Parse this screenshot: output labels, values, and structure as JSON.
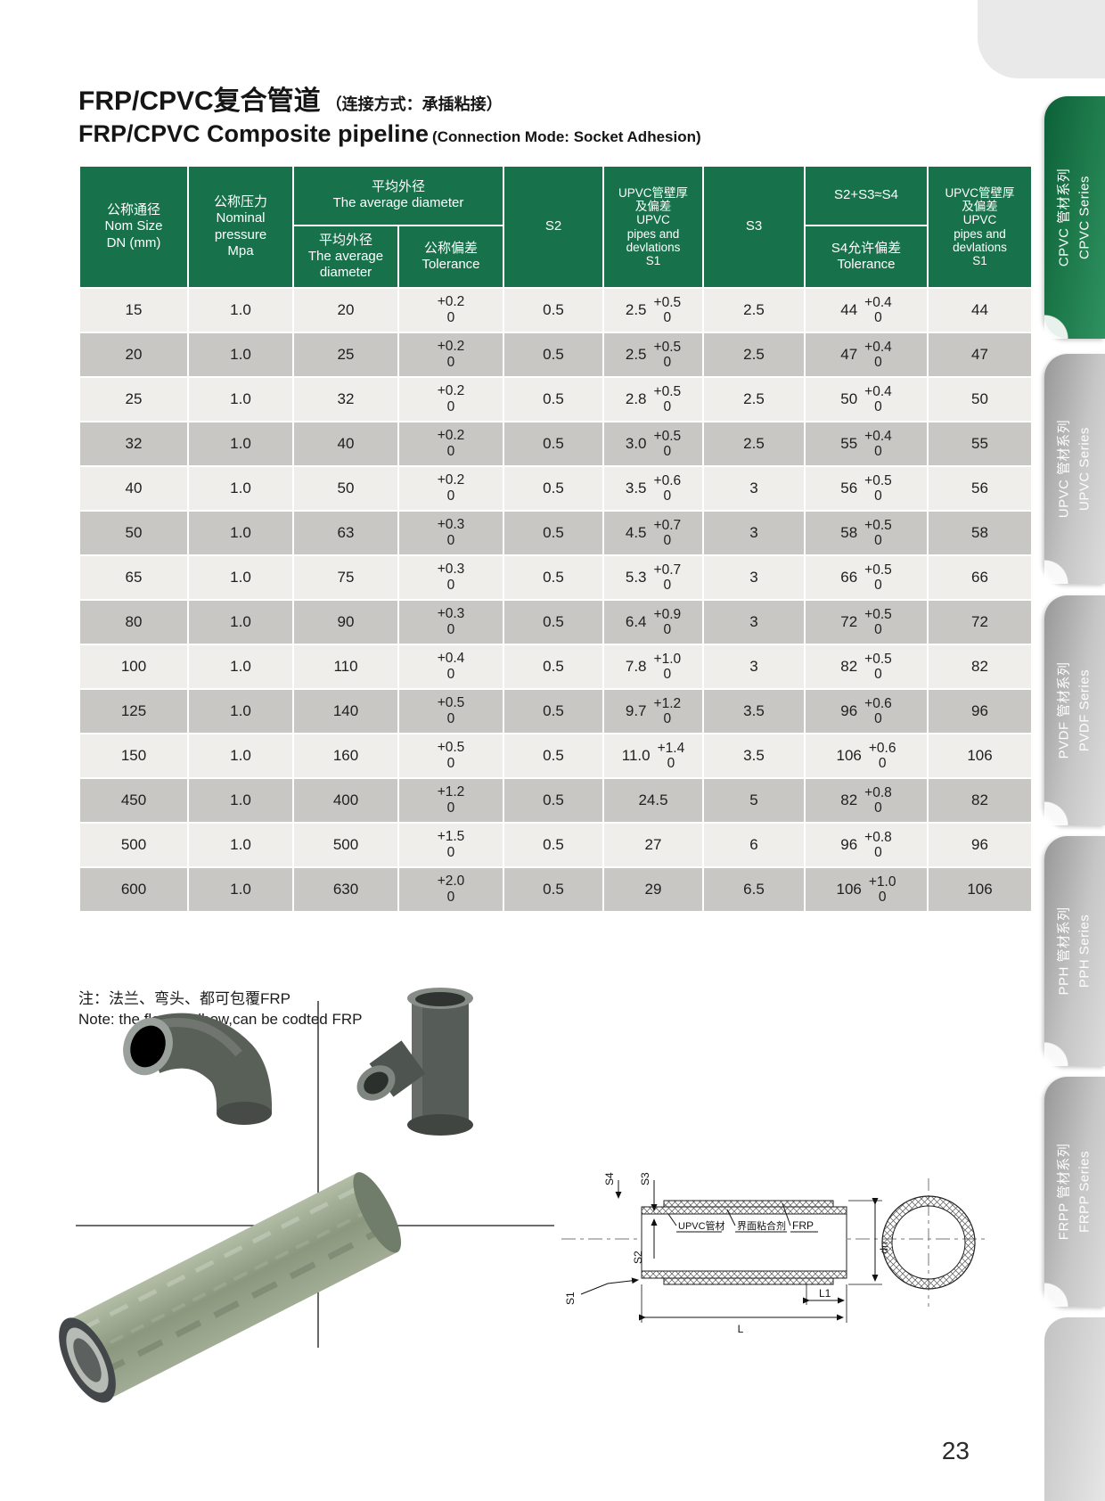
{
  "header": {
    "title_zh": "FRP/CPVC复合管道",
    "subtitle_zh": "（连接方式：承插粘接）",
    "title_en": "FRP/CPVC Composite pipeline",
    "subtitle_en": "(Connection Mode: Socket Adhesion)"
  },
  "table": {
    "col_headers": {
      "dn": "公称通径\nNom Size\nDN (mm)",
      "pressure": "公称压力\nNominal\npressure\nMpa",
      "avg_group": "平均外径\nThe average diameter",
      "avg_sub": "平均外径\nThe average\ndiameter",
      "avg_tol": "公称偏差\nTolerance",
      "s2": "S2",
      "s1": "UPVC管壁厚\n及偏差\nUPVC\npipes and\ndevlations\nS1",
      "s3": "S3",
      "s4_group": "S2+S3≈S4",
      "s4_tol": "S4允许偏差\nTolerance",
      "s1_right": "UPVC管壁厚\n及偏差\nUPVC\npipes and\ndevlations\nS1"
    },
    "rows": [
      {
        "dn": "15",
        "pressure": "1.0",
        "avg": "20",
        "avg_tol": "+0.2\n0",
        "s2": "0.5",
        "s1": "2.5",
        "s1_tol": "+0.5\n0",
        "s3": "2.5",
        "s4": "44",
        "s4_tol": "+0.4\n0",
        "s1_right": "44"
      },
      {
        "dn": "20",
        "pressure": "1.0",
        "avg": "25",
        "avg_tol": "+0.2\n0",
        "s2": "0.5",
        "s1": "2.5",
        "s1_tol": "+0.5\n0",
        "s3": "2.5",
        "s4": "47",
        "s4_tol": "+0.4\n0",
        "s1_right": "47"
      },
      {
        "dn": "25",
        "pressure": "1.0",
        "avg": "32",
        "avg_tol": "+0.2\n0",
        "s2": "0.5",
        "s1": "2.8",
        "s1_tol": "+0.5\n0",
        "s3": "2.5",
        "s4": "50",
        "s4_tol": "+0.4\n0",
        "s1_right": "50"
      },
      {
        "dn": "32",
        "pressure": "1.0",
        "avg": "40",
        "avg_tol": "+0.2\n0",
        "s2": "0.5",
        "s1": "3.0",
        "s1_tol": "+0.5\n0",
        "s3": "2.5",
        "s4": "55",
        "s4_tol": "+0.4\n0",
        "s1_right": "55"
      },
      {
        "dn": "40",
        "pressure": "1.0",
        "avg": "50",
        "avg_tol": "+0.2\n0",
        "s2": "0.5",
        "s1": "3.5",
        "s1_tol": "+0.6\n0",
        "s3": "3",
        "s4": "56",
        "s4_tol": "+0.5\n0",
        "s1_right": "56"
      },
      {
        "dn": "50",
        "pressure": "1.0",
        "avg": "63",
        "avg_tol": "+0.3\n0",
        "s2": "0.5",
        "s1": "4.5",
        "s1_tol": "+0.7\n0",
        "s3": "3",
        "s4": "58",
        "s4_tol": "+0.5\n0",
        "s1_right": "58"
      },
      {
        "dn": "65",
        "pressure": "1.0",
        "avg": "75",
        "avg_tol": "+0.3\n0",
        "s2": "0.5",
        "s1": "5.3",
        "s1_tol": "+0.7\n0",
        "s3": "3",
        "s4": "66",
        "s4_tol": "+0.5\n0",
        "s1_right": "66"
      },
      {
        "dn": "80",
        "pressure": "1.0",
        "avg": "90",
        "avg_tol": "+0.3\n0",
        "s2": "0.5",
        "s1": "6.4",
        "s1_tol": "+0.9\n0",
        "s3": "3",
        "s4": "72",
        "s4_tol": "+0.5\n0",
        "s1_right": "72"
      },
      {
        "dn": "100",
        "pressure": "1.0",
        "avg": "110",
        "avg_tol": "+0.4\n0",
        "s2": "0.5",
        "s1": "7.8",
        "s1_tol": "+1.0\n0",
        "s3": "3",
        "s4": "82",
        "s4_tol": "+0.5\n0",
        "s1_right": "82"
      },
      {
        "dn": "125",
        "pressure": "1.0",
        "avg": "140",
        "avg_tol": "+0.5\n0",
        "s2": "0.5",
        "s1": "9.7",
        "s1_tol": "+1.2\n0",
        "s3": "3.5",
        "s4": "96",
        "s4_tol": "+0.6\n0",
        "s1_right": "96"
      },
      {
        "dn": "150",
        "pressure": "1.0",
        "avg": "160",
        "avg_tol": "+0.5\n0",
        "s2": "0.5",
        "s1": "11.0",
        "s1_tol": "+1.4\n0",
        "s3": "3.5",
        "s4": "106",
        "s4_tol": "+0.6\n0",
        "s1_right": "106"
      },
      {
        "dn": "450",
        "pressure": "1.0",
        "avg": "400",
        "avg_tol": "+1.2\n0",
        "s2": "0.5",
        "s1": "24.5",
        "s1_tol": "",
        "s3": "5",
        "s4": "82",
        "s4_tol": "+0.8\n0",
        "s1_right": "82"
      },
      {
        "dn": "500",
        "pressure": "1.0",
        "avg": "500",
        "avg_tol": "+1.5\n0",
        "s2": "0.5",
        "s1": "27",
        "s1_tol": "",
        "s3": "6",
        "s4": "96",
        "s4_tol": "+0.8\n0",
        "s1_right": "96"
      },
      {
        "dn": "600",
        "pressure": "1.0",
        "avg": "630",
        "avg_tol": "+2.0\n0",
        "s2": "0.5",
        "s1": "29",
        "s1_tol": "",
        "s3": "6.5",
        "s4": "106",
        "s4_tol": "+1.0\n0",
        "s1_right": "106"
      }
    ]
  },
  "notes": {
    "zh": "注：法兰、弯头、都可包覆FRP",
    "en": "Note: the flange,elbow,can be codted FRP"
  },
  "sidebar": {
    "tabs": [
      {
        "zh": "CPVC 管材系列",
        "en": "CPVC Series",
        "active": true
      },
      {
        "zh": "UPVC 管材系列",
        "en": "UPVC Series",
        "active": false
      },
      {
        "zh": "PVDF 管材系列",
        "en": "PVDF Series",
        "active": false
      },
      {
        "zh": "PPH 管材系列",
        "en": "PPH Series",
        "active": false
      },
      {
        "zh": "FRPP 管材系列",
        "en": "FRPP Series",
        "active": false
      }
    ]
  },
  "diagram": {
    "s4": "S4",
    "s3": "S3",
    "s2": "S2",
    "s1": "S1",
    "L": "L",
    "L1": "L1",
    "dn": "dn",
    "layer_upvc": "UPVC管材",
    "layer_adhesive": "界面粘合剂",
    "layer_frp": "FRP"
  },
  "footer": {
    "page_number": "23"
  },
  "colors": {
    "header_green": "#17714a",
    "row_light": "#efeeeb",
    "row_dark": "#c9c7c3",
    "tab_green": "#0c6039"
  }
}
